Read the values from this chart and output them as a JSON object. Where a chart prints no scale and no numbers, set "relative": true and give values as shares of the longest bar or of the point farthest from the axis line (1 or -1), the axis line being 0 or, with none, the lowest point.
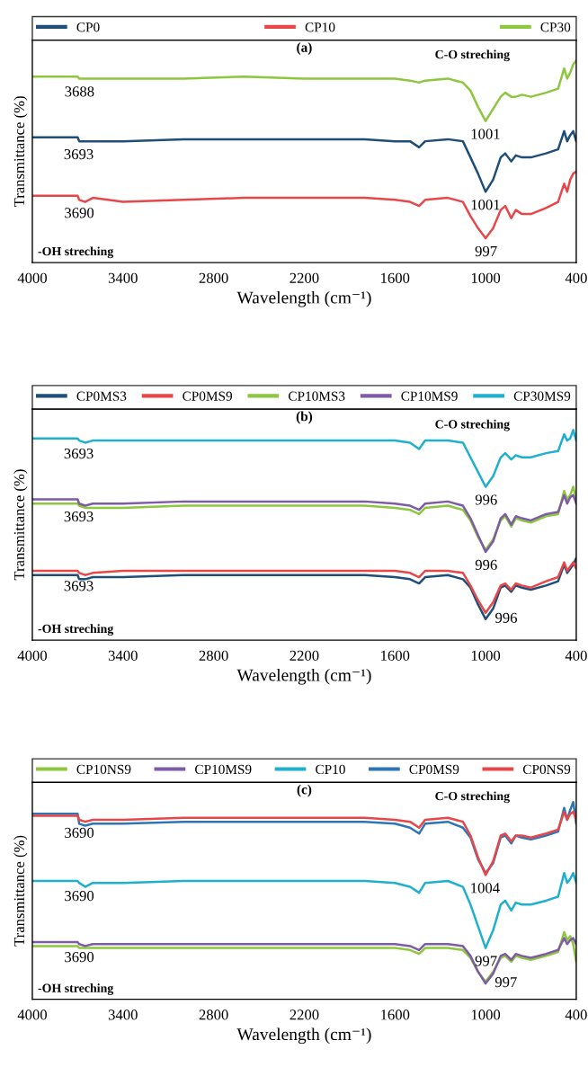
{
  "chart_data": [
    {
      "type": "line",
      "title": "(a)",
      "xlabel": "Wavelength (cm⁻¹)",
      "ylabel": "Transmittance (%)",
      "relative": true,
      "tick_labels": "x",
      "legend": "top",
      "grid": false,
      "xlim": [
        4000,
        400
      ],
      "xticks": [
        4000,
        3400,
        2800,
        2200,
        1600,
        1000,
        400
      ],
      "x": [
        4000,
        3800,
        3700,
        3690,
        3650,
        3600,
        3400,
        3000,
        2600,
        2200,
        1800,
        1600,
        1500,
        1440,
        1400,
        1250,
        1150,
        1100,
        1050,
        1000,
        950,
        900,
        870,
        830,
        800,
        760,
        700,
        600,
        520,
        480,
        460,
        440,
        420,
        400
      ],
      "series": [
        {
          "name": "CP0",
          "color": "#1f4e79",
          "values": [
            0.62,
            0.62,
            0.62,
            0.6,
            0.6,
            0.6,
            0.6,
            0.61,
            0.61,
            0.61,
            0.61,
            0.6,
            0.6,
            0.57,
            0.6,
            0.61,
            0.6,
            0.52,
            0.44,
            0.35,
            0.41,
            0.52,
            0.54,
            0.5,
            0.53,
            0.52,
            0.52,
            0.54,
            0.56,
            0.65,
            0.6,
            0.63,
            0.65,
            0.6
          ]
        },
        {
          "name": "CP10",
          "color": "#e8474a",
          "values": [
            0.33,
            0.33,
            0.33,
            0.31,
            0.3,
            0.32,
            0.3,
            0.31,
            0.32,
            0.32,
            0.32,
            0.31,
            0.3,
            0.28,
            0.31,
            0.32,
            0.3,
            0.23,
            0.17,
            0.12,
            0.17,
            0.26,
            0.28,
            0.22,
            0.26,
            0.24,
            0.24,
            0.27,
            0.3,
            0.39,
            0.35,
            0.41,
            0.44,
            0.45
          ]
        },
        {
          "name": "CP30",
          "color": "#8dc63f",
          "values": [
            0.92,
            0.92,
            0.92,
            0.91,
            0.91,
            0.91,
            0.91,
            0.91,
            0.92,
            0.91,
            0.91,
            0.91,
            0.9,
            0.89,
            0.9,
            0.91,
            0.89,
            0.85,
            0.77,
            0.7,
            0.76,
            0.82,
            0.84,
            0.82,
            0.82,
            0.83,
            0.82,
            0.84,
            0.86,
            0.96,
            0.91,
            0.94,
            0.98,
            1.0
          ]
        }
      ],
      "annotations": [
        "C-O streching",
        "-OH streching",
        {
          "text": "3688",
          "x": 3688,
          "y": 0.91
        },
        {
          "text": "3693",
          "x": 3693,
          "y": 0.6
        },
        {
          "text": "3690",
          "x": 3690,
          "y": 0.31
        },
        {
          "text": "1001",
          "x": 1001,
          "y": 0.7
        },
        {
          "text": "1001",
          "x": 1001,
          "y": 0.35
        },
        {
          "text": "997",
          "x": 997,
          "y": 0.12
        }
      ]
    },
    {
      "type": "line",
      "title": "(b)",
      "xlabel": "Wavelength (cm⁻¹)",
      "ylabel": "Transmittance (%)",
      "relative": true,
      "tick_labels": "x",
      "legend": "top",
      "grid": false,
      "xlim": [
        4000,
        400
      ],
      "xticks": [
        4000,
        3400,
        2800,
        2200,
        1600,
        1000,
        400
      ],
      "x": [
        4000,
        3800,
        3700,
        3690,
        3650,
        3600,
        3400,
        3000,
        2600,
        2200,
        1800,
        1600,
        1500,
        1440,
        1400,
        1250,
        1150,
        1100,
        1050,
        1000,
        950,
        900,
        870,
        830,
        800,
        760,
        700,
        600,
        520,
        480,
        460,
        440,
        420,
        400
      ],
      "series": [
        {
          "name": "CP0MS3",
          "color": "#1f4e79",
          "values": [
            0.31,
            0.31,
            0.31,
            0.29,
            0.29,
            0.3,
            0.3,
            0.31,
            0.31,
            0.31,
            0.31,
            0.3,
            0.29,
            0.27,
            0.3,
            0.31,
            0.29,
            0.25,
            0.17,
            0.1,
            0.15,
            0.25,
            0.26,
            0.23,
            0.26,
            0.25,
            0.24,
            0.26,
            0.28,
            0.36,
            0.32,
            0.34,
            0.36,
            0.39
          ]
        },
        {
          "name": "CP0MS9",
          "color": "#e8474a",
          "values": [
            0.33,
            0.33,
            0.33,
            0.32,
            0.31,
            0.32,
            0.33,
            0.33,
            0.33,
            0.33,
            0.33,
            0.33,
            0.32,
            0.3,
            0.33,
            0.33,
            0.32,
            0.26,
            0.19,
            0.13,
            0.18,
            0.26,
            0.27,
            0.24,
            0.27,
            0.26,
            0.25,
            0.28,
            0.3,
            0.37,
            0.33,
            0.35,
            0.37,
            0.34
          ]
        },
        {
          "name": "CP10MS3",
          "color": "#8dc63f",
          "values": [
            0.65,
            0.65,
            0.65,
            0.64,
            0.63,
            0.63,
            0.63,
            0.64,
            0.64,
            0.64,
            0.64,
            0.63,
            0.62,
            0.6,
            0.63,
            0.64,
            0.62,
            0.57,
            0.49,
            0.43,
            0.48,
            0.57,
            0.59,
            0.54,
            0.58,
            0.57,
            0.56,
            0.59,
            0.6,
            0.71,
            0.67,
            0.69,
            0.73,
            0.67
          ]
        },
        {
          "name": "CP10MS9",
          "color": "#7d5ba6",
          "values": [
            0.67,
            0.67,
            0.67,
            0.65,
            0.64,
            0.65,
            0.65,
            0.66,
            0.66,
            0.66,
            0.66,
            0.65,
            0.64,
            0.62,
            0.65,
            0.66,
            0.64,
            0.58,
            0.5,
            0.42,
            0.47,
            0.58,
            0.6,
            0.55,
            0.59,
            0.58,
            0.57,
            0.6,
            0.61,
            0.69,
            0.65,
            0.68,
            0.69,
            0.65
          ]
        },
        {
          "name": "CP30MS9",
          "color": "#1fb0cf",
          "values": [
            0.96,
            0.96,
            0.96,
            0.95,
            0.94,
            0.95,
            0.95,
            0.95,
            0.95,
            0.95,
            0.95,
            0.95,
            0.94,
            0.91,
            0.95,
            0.95,
            0.94,
            0.87,
            0.8,
            0.73,
            0.78,
            0.87,
            0.89,
            0.86,
            0.88,
            0.87,
            0.87,
            0.89,
            0.9,
            0.98,
            0.95,
            0.96,
            1.0,
            0.95
          ]
        }
      ],
      "annotations": [
        "C-O streching",
        "-OH streching",
        {
          "text": "3693",
          "x": 3693,
          "y": 0.95
        },
        {
          "text": "3693",
          "x": 3693,
          "y": 0.65
        },
        {
          "text": "3693",
          "x": 3693,
          "y": 0.32
        },
        {
          "text": "996",
          "x": 996,
          "y": 0.73
        },
        {
          "text": "996",
          "x": 996,
          "y": 0.42
        },
        {
          "text": "996",
          "x": 996,
          "y": 0.1
        }
      ]
    },
    {
      "type": "line",
      "title": "(c)",
      "xlabel": "Wavelength (cm⁻¹)",
      "ylabel": "Transmittance (%)",
      "relative": true,
      "tick_labels": "x",
      "legend": "top",
      "grid": false,
      "xlim": [
        4000,
        400
      ],
      "xticks": [
        4000,
        3400,
        2800,
        2200,
        1600,
        1000,
        400
      ],
      "x": [
        4000,
        3800,
        3700,
        3690,
        3650,
        3600,
        3400,
        3000,
        2600,
        2200,
        1800,
        1600,
        1500,
        1440,
        1400,
        1250,
        1150,
        1100,
        1050,
        1000,
        950,
        900,
        870,
        830,
        800,
        760,
        700,
        600,
        520,
        480,
        460,
        440,
        420,
        400
      ],
      "series": [
        {
          "name": "CP10NS9",
          "color": "#8dc63f",
          "values": [
            0.27,
            0.27,
            0.27,
            0.26,
            0.26,
            0.26,
            0.26,
            0.26,
            0.26,
            0.26,
            0.26,
            0.26,
            0.25,
            0.23,
            0.26,
            0.26,
            0.25,
            0.21,
            0.14,
            0.09,
            0.14,
            0.21,
            0.22,
            0.19,
            0.22,
            0.21,
            0.2,
            0.22,
            0.24,
            0.34,
            0.3,
            0.32,
            0.28,
            0.19
          ]
        },
        {
          "name": "CP10MS9",
          "color": "#7d5ba6",
          "values": [
            0.29,
            0.29,
            0.29,
            0.28,
            0.27,
            0.28,
            0.28,
            0.28,
            0.28,
            0.28,
            0.28,
            0.28,
            0.27,
            0.25,
            0.28,
            0.28,
            0.27,
            0.22,
            0.14,
            0.08,
            0.13,
            0.22,
            0.23,
            0.2,
            0.23,
            0.22,
            0.21,
            0.23,
            0.25,
            0.31,
            0.28,
            0.3,
            0.31,
            0.28
          ]
        },
        {
          "name": "CP10",
          "color": "#1fb0cf",
          "values": [
            0.6,
            0.6,
            0.6,
            0.59,
            0.57,
            0.59,
            0.59,
            0.6,
            0.6,
            0.6,
            0.6,
            0.59,
            0.57,
            0.54,
            0.59,
            0.6,
            0.57,
            0.48,
            0.37,
            0.26,
            0.35,
            0.48,
            0.5,
            0.45,
            0.49,
            0.48,
            0.48,
            0.5,
            0.52,
            0.64,
            0.59,
            0.61,
            0.64,
            0.59
          ]
        },
        {
          "name": "CP0MS9",
          "color": "#2e75b6",
          "values": [
            0.94,
            0.94,
            0.94,
            0.89,
            0.88,
            0.89,
            0.89,
            0.9,
            0.9,
            0.9,
            0.9,
            0.89,
            0.87,
            0.84,
            0.89,
            0.9,
            0.87,
            0.82,
            0.71,
            0.64,
            0.69,
            0.82,
            0.83,
            0.79,
            0.83,
            0.82,
            0.81,
            0.83,
            0.85,
            0.97,
            0.91,
            0.96,
            1.0,
            0.89
          ]
        },
        {
          "name": "CP0NS9",
          "color": "#e8474a",
          "values": [
            0.93,
            0.93,
            0.93,
            0.91,
            0.9,
            0.91,
            0.91,
            0.92,
            0.92,
            0.92,
            0.92,
            0.91,
            0.9,
            0.87,
            0.91,
            0.92,
            0.9,
            0.83,
            0.72,
            0.63,
            0.7,
            0.83,
            0.84,
            0.8,
            0.83,
            0.83,
            0.82,
            0.84,
            0.86,
            0.95,
            0.91,
            0.94,
            0.95,
            0.91
          ]
        }
      ],
      "annotations": [
        "C-O streching",
        "-OH streching",
        {
          "text": "3690",
          "x": 3690,
          "y": 0.91
        },
        {
          "text": "3690",
          "x": 3690,
          "y": 0.59
        },
        {
          "text": "3690",
          "x": 3690,
          "y": 0.28
        },
        {
          "text": "1004",
          "x": 1004,
          "y": 0.63
        },
        {
          "text": "997",
          "x": 997,
          "y": 0.26
        },
        {
          "text": "997",
          "x": 997,
          "y": 0.08
        }
      ]
    }
  ]
}
